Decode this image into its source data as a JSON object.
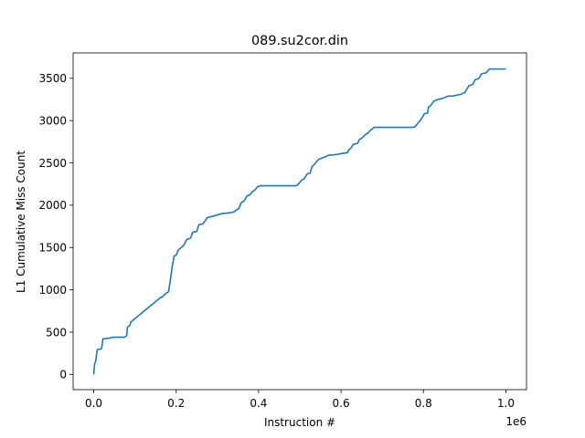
{
  "chart_data": {
    "type": "line",
    "title": "089.su2cor.din",
    "xlabel": "Instruction #",
    "ylabel": "L1 Cumulative Miss Count",
    "x_offset_label": "1e6",
    "xlim": [
      -50000,
      1050000
    ],
    "ylim": [
      -180,
      3800
    ],
    "xticks": [
      0,
      200000,
      400000,
      600000,
      800000,
      1000000
    ],
    "xtick_labels": [
      "0.0",
      "0.2",
      "0.4",
      "0.6",
      "0.8",
      "1.0"
    ],
    "yticks": [
      0,
      500,
      1000,
      1500,
      2000,
      2500,
      3000,
      3500
    ],
    "ytick_labels": [
      "0",
      "500",
      "1000",
      "1500",
      "2000",
      "2500",
      "3000",
      "3500"
    ],
    "grid": false,
    "series": [
      {
        "color": "#1f77b4",
        "x": [
          0,
          2000,
          5000,
          8000,
          10000,
          18000,
          20000,
          22000,
          40000,
          45000,
          75000,
          78000,
          80000,
          82000,
          88000,
          90000,
          95000,
          160000,
          162000,
          165000,
          175000,
          180000,
          182000,
          187000,
          190000,
          195000,
          200000,
          205000,
          215000,
          220000,
          225000,
          228000,
          235000,
          240000,
          250000,
          255000,
          265000,
          275000,
          280000,
          290000,
          310000,
          330000,
          340000,
          345000,
          352000,
          358000,
          365000,
          372000,
          378000,
          385000,
          390000,
          398000,
          405000,
          490000,
          495000,
          505000,
          510000,
          518000,
          525000,
          530000,
          535000,
          545000,
          555000,
          560000,
          570000,
          590000,
          600000,
          615000,
          620000,
          625000,
          630000,
          640000,
          645000,
          650000,
          660000,
          665000,
          670000,
          680000,
          685000,
          775000,
          780000,
          790000,
          792000,
          800000,
          802000,
          810000,
          812000,
          818000,
          825000,
          835000,
          845000,
          855000,
          860000,
          870000,
          880000,
          890000,
          900000,
          910000,
          915000,
          920000,
          925000,
          935000,
          940000,
          945000,
          950000,
          955000,
          960000,
          965000,
          1000000
        ],
        "y": [
          0,
          120,
          160,
          280,
          295,
          300,
          330,
          420,
          430,
          440,
          440,
          450,
          460,
          560,
          580,
          620,
          640,
          900,
          910,
          910,
          960,
          970,
          990,
          1150,
          1260,
          1400,
          1410,
          1470,
          1510,
          1540,
          1590,
          1600,
          1610,
          1680,
          1690,
          1770,
          1780,
          1850,
          1860,
          1870,
          1900,
          1910,
          1920,
          1940,
          1960,
          2030,
          2050,
          2110,
          2120,
          2160,
          2175,
          2220,
          2230,
          2230,
          2240,
          2300,
          2310,
          2370,
          2380,
          2460,
          2480,
          2540,
          2560,
          2570,
          2590,
          2600,
          2610,
          2620,
          2660,
          2680,
          2720,
          2730,
          2780,
          2790,
          2840,
          2850,
          2880,
          2920,
          2920,
          2920,
          2930,
          2990,
          3000,
          3060,
          3080,
          3090,
          3160,
          3180,
          3230,
          3250,
          3260,
          3280,
          3290,
          3290,
          3300,
          3310,
          3330,
          3410,
          3420,
          3430,
          3480,
          3500,
          3550,
          3560,
          3560,
          3580,
          3610,
          3610,
          3610
        ]
      }
    ]
  }
}
